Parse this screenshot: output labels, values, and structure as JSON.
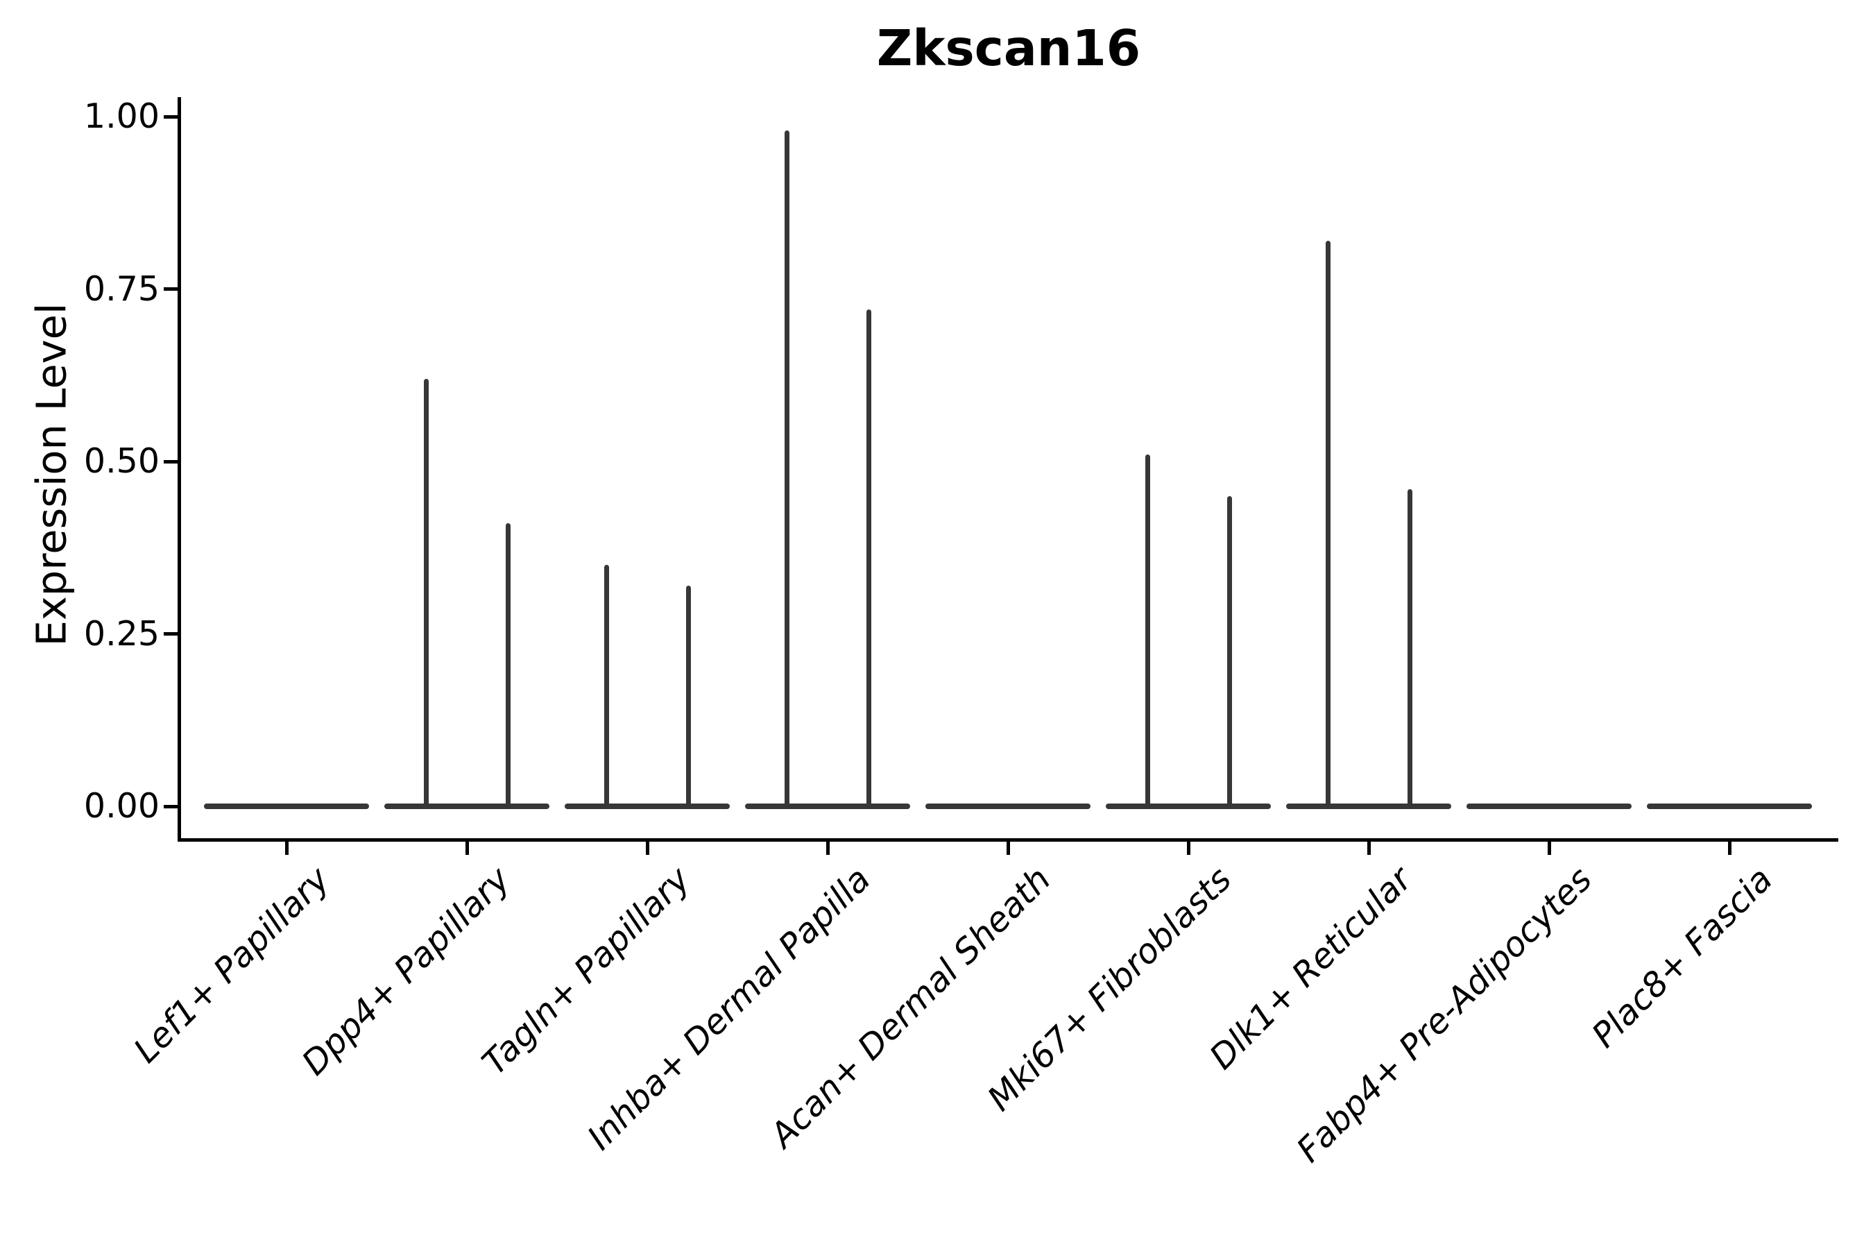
{
  "chart_data": {
    "type": "violin",
    "title": "Zkscan16",
    "ylabel": "Expression Level",
    "xlabel": "",
    "categories": [
      "Lef1+ Papillary",
      "Dpp4+ Papillary",
      "Tagln+ Papillary",
      "Inhba+ Dermal Papilla",
      "Acan+ Dermal Sheath",
      "Mki67+ Fibroblasts",
      "Dlk1+ Reticular",
      "Fabp4+ Pre-Adipocytes",
      "Plac8+ Fascia"
    ],
    "series": [
      {
        "name": "left-violin-spike-max",
        "values": [
          0,
          0.62,
          0.35,
          0.98,
          0,
          0.51,
          0.82,
          0,
          0
        ]
      },
      {
        "name": "right-violin-spike-max",
        "values": [
          0,
          0.41,
          0.32,
          0.72,
          0,
          0.45,
          0.46,
          0,
          0
        ]
      }
    ],
    "baseline_value": 0.0,
    "ytick_labels": [
      "1.00",
      "0.75",
      "0.50",
      "0.25",
      "0.00"
    ],
    "ylim": [
      0,
      1.03
    ],
    "grid": false,
    "legend": "none",
    "violin_color": "#373737",
    "axis_color": "#000000",
    "text_color": "#000000"
  }
}
